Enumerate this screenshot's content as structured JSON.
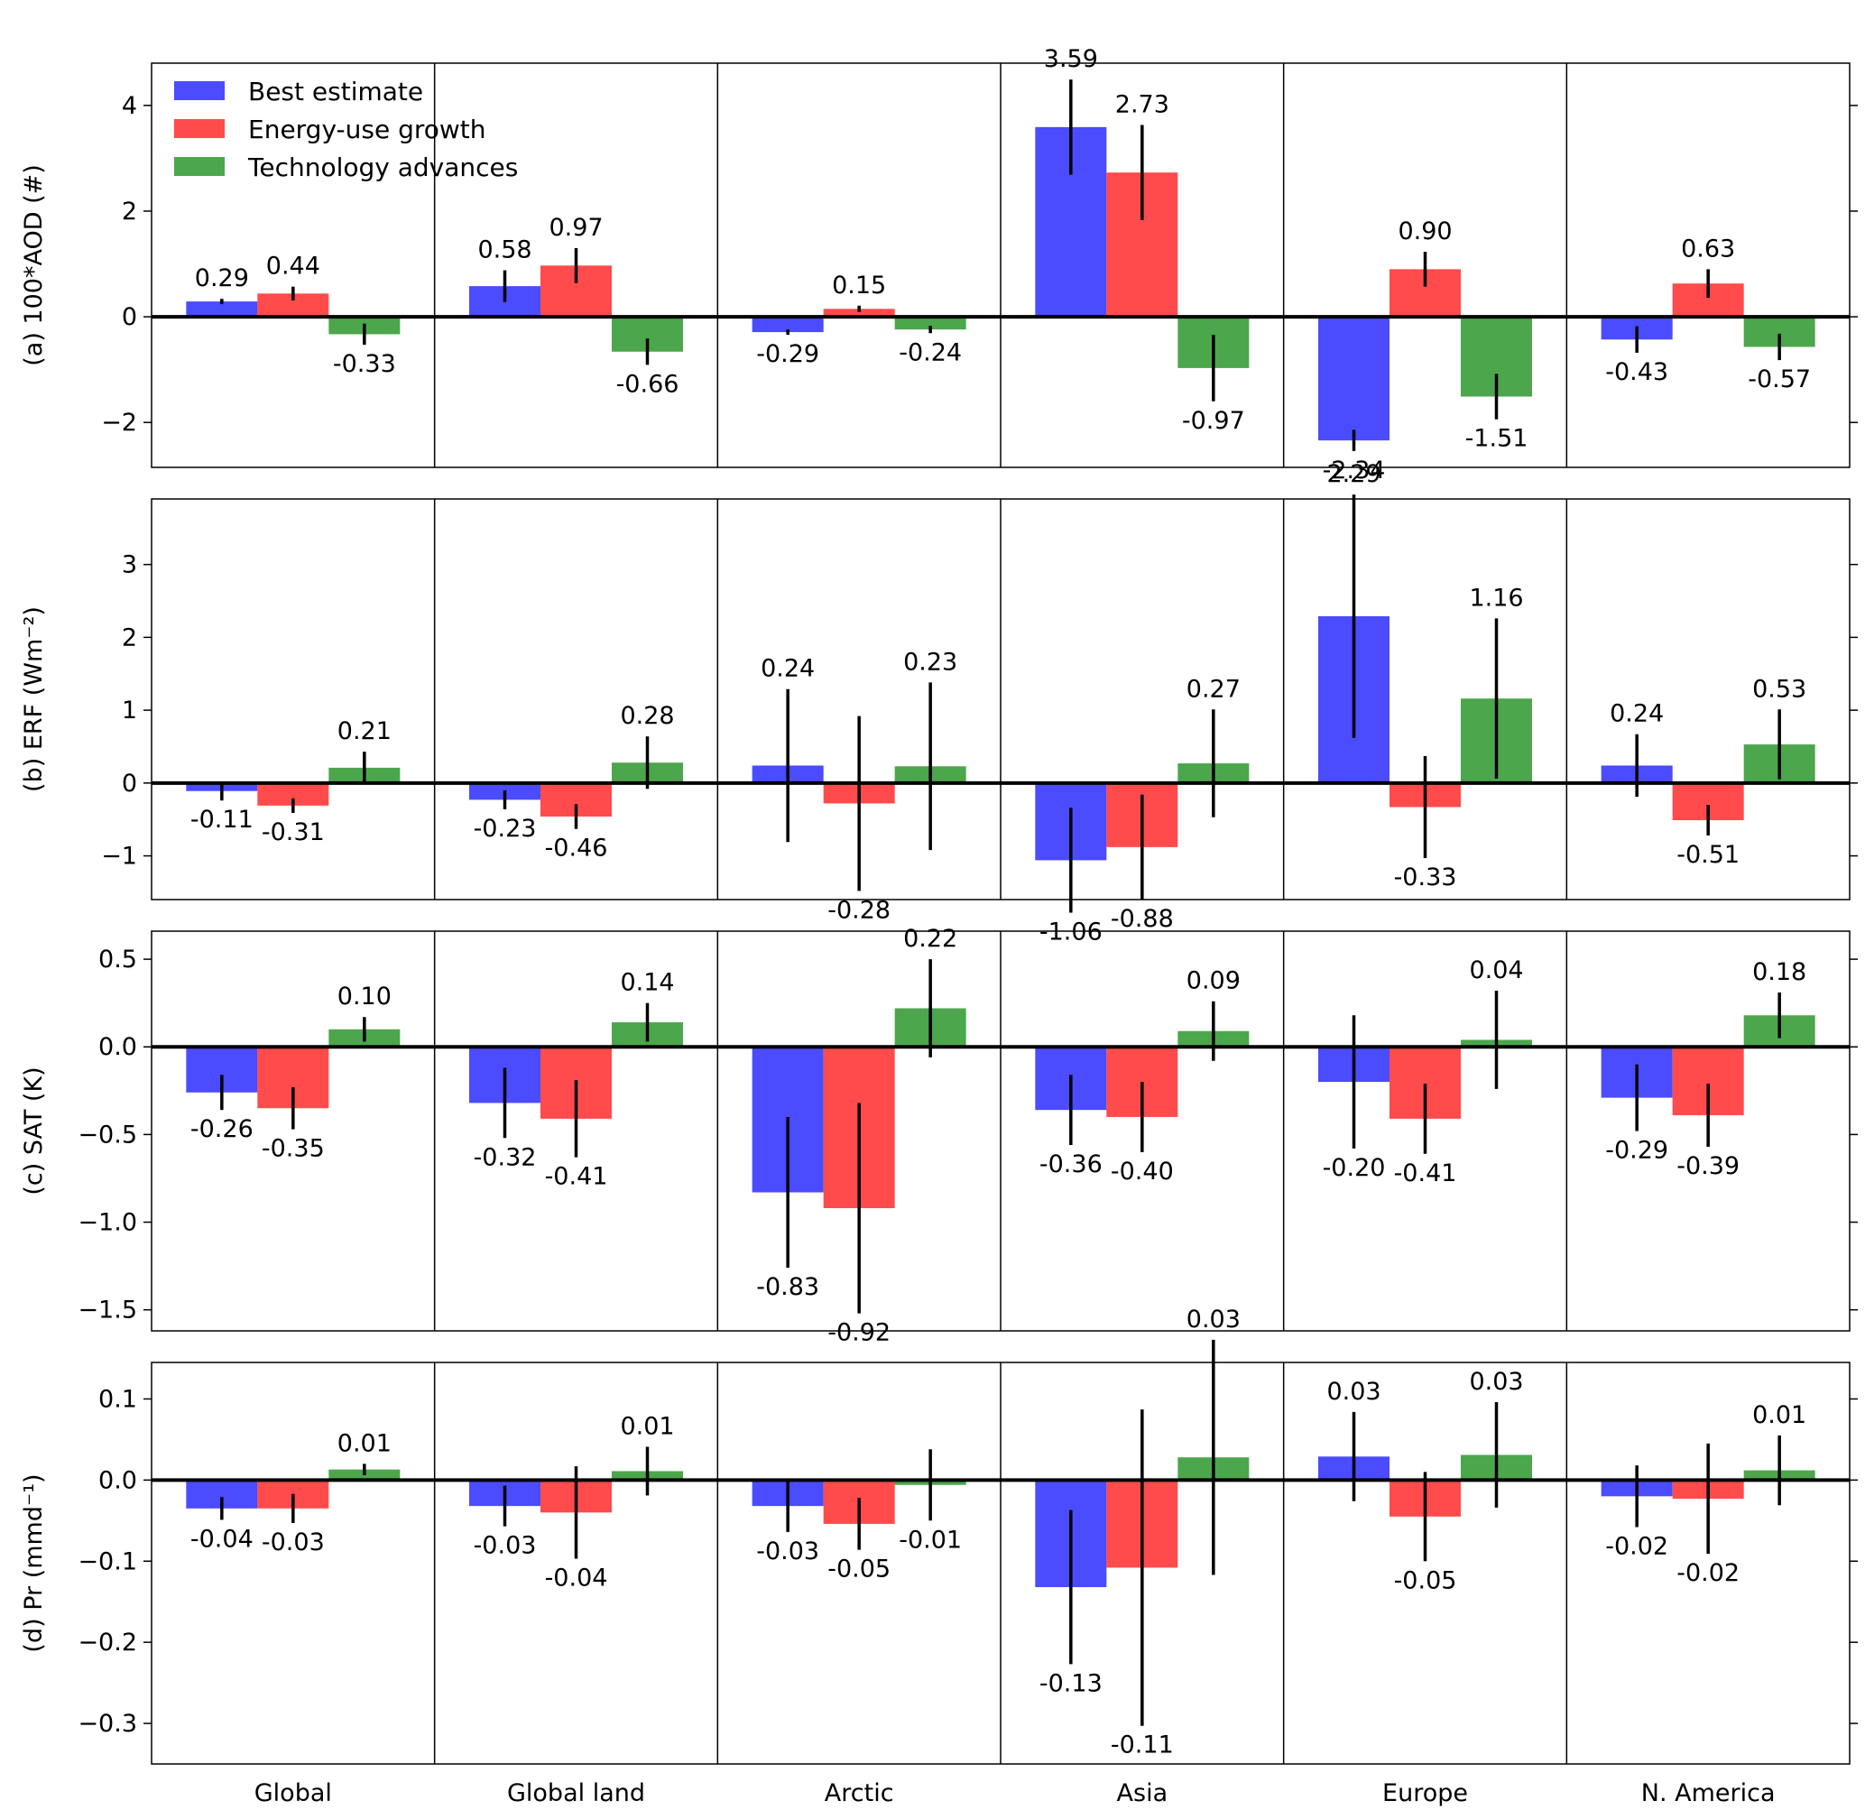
{
  "chart_data": {
    "type": "bar",
    "categories": [
      "Global",
      "Global land",
      "Arctic",
      "Asia",
      "Europe",
      "N. America"
    ],
    "legend": {
      "placement": "top-left",
      "entries": [
        {
          "name": "Best estimate",
          "color": "#4b4bff"
        },
        {
          "name": "Energy-use growth",
          "color": "#ff4b4b"
        },
        {
          "name": "Technology advances",
          "color": "#4ca64c"
        }
      ]
    },
    "panels": [
      {
        "ylabel": "(a) 100*AOD (#)",
        "ylim": [
          -2.85,
          4.8
        ],
        "yticks": [
          4,
          2,
          0,
          -2
        ],
        "ytick_labels": [
          "4",
          "2",
          "0",
          "−2"
        ],
        "series": [
          {
            "name": "Best estimate",
            "values": [
              0.29,
              0.58,
              -0.29,
              3.59,
              -2.34,
              -0.43
            ],
            "err": [
              0.05,
              0.3,
              0.05,
              0.9,
              0.2,
              0.25
            ],
            "labels": [
              "0.29",
              "0.58",
              "-0.29",
              "3.59",
              "-2.34",
              "-0.43"
            ]
          },
          {
            "name": "Energy-use growth",
            "values": [
              0.44,
              0.97,
              0.15,
              2.73,
              0.9,
              0.63
            ],
            "err": [
              0.13,
              0.33,
              0.06,
              0.9,
              0.33,
              0.27
            ],
            "labels": [
              "0.44",
              "0.97",
              "0.15",
              "2.73",
              "0.90",
              "0.63"
            ]
          },
          {
            "name": "Technology advances",
            "values": [
              -0.33,
              -0.66,
              -0.24,
              -0.97,
              -1.51,
              -0.57
            ],
            "err": [
              0.2,
              0.25,
              0.07,
              0.63,
              0.43,
              0.25
            ],
            "labels": [
              "-0.33",
              "-0.66",
              "-0.24",
              "-0.97",
              "-1.51",
              "-0.57"
            ]
          }
        ]
      },
      {
        "ylabel": "(b) ERF (Wm⁻²)",
        "ylim": [
          -1.6,
          3.9
        ],
        "yticks": [
          3,
          2,
          1,
          0,
          -1
        ],
        "ytick_labels": [
          "3",
          "2",
          "1",
          "0",
          "−1"
        ],
        "series": [
          {
            "name": "Best estimate",
            "values": [
              -0.11,
              -0.23,
              0.24,
              -1.06,
              2.29,
              0.24
            ],
            "err": [
              0.13,
              0.13,
              1.05,
              0.72,
              1.67,
              0.43
            ],
            "labels": [
              "-0.11",
              "-0.23",
              "0.24",
              "-1.06",
              "2.29",
              "0.24"
            ]
          },
          {
            "name": "Energy-use growth",
            "values": [
              -0.31,
              -0.46,
              -0.28,
              -0.88,
              -0.33,
              -0.51
            ],
            "err": [
              0.1,
              0.17,
              1.2,
              0.72,
              0.7,
              0.21
            ],
            "labels": [
              "-0.31",
              "-0.46",
              "-0.28",
              "-0.88",
              "-0.33",
              "-0.51"
            ]
          },
          {
            "name": "Technology advances",
            "values": [
              0.21,
              0.28,
              0.23,
              0.27,
              1.16,
              0.53
            ],
            "err": [
              0.22,
              0.36,
              1.15,
              0.74,
              1.1,
              0.48
            ],
            "labels": [
              "0.21",
              "0.28",
              "0.23",
              "0.27",
              "1.16",
              "0.53"
            ]
          }
        ]
      },
      {
        "ylabel": "(c) SAT (K)",
        "ylim": [
          -1.62,
          0.66
        ],
        "yticks": [
          0.5,
          0.0,
          -0.5,
          -1.0,
          -1.5
        ],
        "ytick_labels": [
          "0.5",
          "0.0",
          "−0.5",
          "−1.0",
          "−1.5"
        ],
        "series": [
          {
            "name": "Best estimate",
            "values": [
              -0.26,
              -0.32,
              -0.83,
              -0.36,
              -0.2,
              -0.29
            ],
            "err": [
              0.1,
              0.2,
              0.43,
              0.2,
              0.38,
              0.19
            ],
            "labels": [
              "-0.26",
              "-0.32",
              "-0.83",
              "-0.36",
              "-0.20",
              "-0.29"
            ]
          },
          {
            "name": "Energy-use growth",
            "values": [
              -0.35,
              -0.41,
              -0.92,
              -0.4,
              -0.41,
              -0.39
            ],
            "err": [
              0.12,
              0.22,
              0.6,
              0.2,
              0.2,
              0.18
            ],
            "labels": [
              "-0.35",
              "-0.41",
              "-0.92",
              "-0.40",
              "-0.41",
              "-0.39"
            ]
          },
          {
            "name": "Technology advances",
            "values": [
              0.1,
              0.14,
              0.22,
              0.09,
              0.04,
              0.18
            ],
            "err": [
              0.07,
              0.11,
              0.28,
              0.17,
              0.28,
              0.13
            ],
            "labels": [
              "0.10",
              "0.14",
              "0.22",
              "0.09",
              "0.04",
              "0.18"
            ]
          }
        ]
      },
      {
        "ylabel": "(d) Pr (mmd⁻¹)",
        "ylim": [
          -0.35,
          0.145
        ],
        "yticks": [
          0.1,
          0.0,
          -0.1,
          -0.2,
          -0.3
        ],
        "ytick_labels": [
          "0.1",
          "0.0",
          "−0.1",
          "−0.2",
          "−0.3"
        ],
        "series": [
          {
            "name": "Best estimate",
            "values": [
              -0.035,
              -0.032,
              -0.032,
              -0.132,
              0.029,
              -0.02
            ],
            "err": [
              0.014,
              0.025,
              0.032,
              0.095,
              0.055,
              0.038
            ],
            "labels": [
              "-0.04",
              "-0.03",
              "-0.03",
              "-0.13",
              "0.03",
              "-0.02"
            ]
          },
          {
            "name": "Energy-use growth",
            "values": [
              -0.035,
              -0.04,
              -0.054,
              -0.108,
              -0.045,
              -0.023
            ],
            "err": [
              0.018,
              0.057,
              0.032,
              0.195,
              0.055,
              0.068
            ],
            "labels": [
              "-0.03",
              "-0.04",
              "-0.05",
              "-0.11",
              "-0.05",
              "-0.02"
            ]
          },
          {
            "name": "Technology advances",
            "values": [
              0.013,
              0.011,
              -0.006,
              0.028,
              0.031,
              0.012
            ],
            "err": [
              0.007,
              0.03,
              0.044,
              0.145,
              0.065,
              0.043
            ],
            "labels": [
              "0.01",
              "0.01",
              "-0.01",
              "0.03",
              "0.03",
              "0.01"
            ]
          }
        ]
      }
    ]
  }
}
